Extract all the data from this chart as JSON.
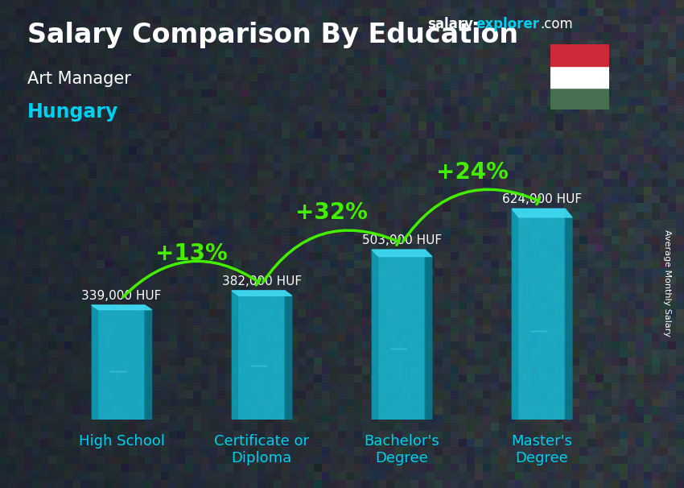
{
  "title_bold": "Salary Comparison By Education",
  "subtitle1": "Art Manager",
  "subtitle2": "Hungary",
  "watermark_salary": "salary",
  "watermark_explorer": "explorer",
  "watermark_com": ".com",
  "ylabel": "Average Monthly Salary",
  "categories": [
    "High School",
    "Certificate or\nDiploma",
    "Bachelor's\nDegree",
    "Master's\nDegree"
  ],
  "values": [
    339000,
    382000,
    503000,
    624000
  ],
  "value_labels": [
    "339,000 HUF",
    "382,000 HUF",
    "503,000 HUF",
    "624,000 HUF"
  ],
  "pct_labels": [
    "+13%",
    "+32%",
    "+24%"
  ],
  "bar_face_color": "#1ab8d4",
  "bar_left_color": "#0d8fa6",
  "bar_right_color": "#0a7a8e",
  "bar_top_color": "#40d8f0",
  "bar_width": 0.38,
  "bg_color": "#3a4a5a",
  "text_color_white": "#ffffff",
  "text_color_cyan": "#00d0f0",
  "text_color_green": "#44ee00",
  "title_fontsize": 24,
  "subtitle1_fontsize": 15,
  "subtitle2_fontsize": 17,
  "value_label_fontsize": 11,
  "pct_fontsize": 20,
  "cat_fontsize": 13,
  "arrow_color": "#44ee00",
  "ylim": [
    0,
    780000
  ],
  "flag_red": "#ce2939",
  "flag_white": "#ffffff",
  "flag_green": "#477050"
}
